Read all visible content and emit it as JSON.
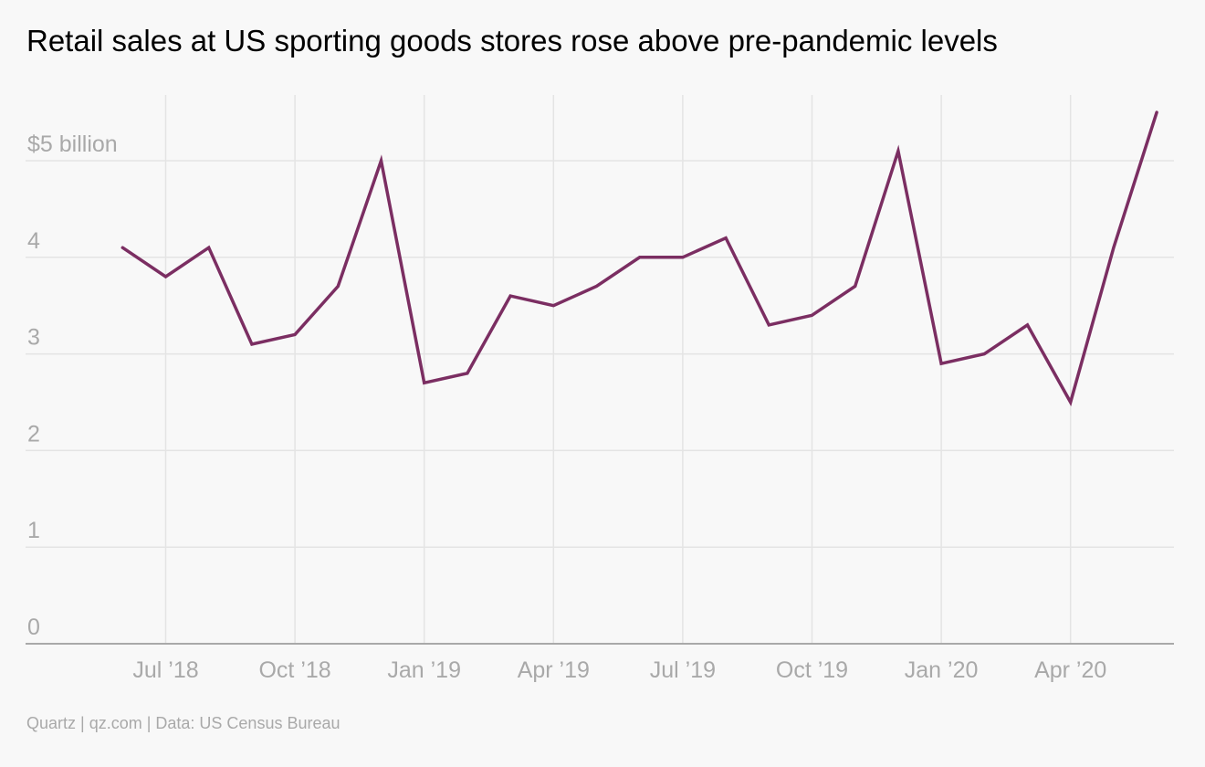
{
  "chart_data": {
    "type": "line",
    "title": "Retail sales at US sporting goods stores rose above pre-pandemic levels",
    "source": "Quartz | qz.com | Data: US Census Bureau",
    "ylim": [
      0,
      5.5
    ],
    "y_ticks": [
      {
        "value": 0,
        "label": "0"
      },
      {
        "value": 1,
        "label": "1"
      },
      {
        "value": 2,
        "label": "2"
      },
      {
        "value": 3,
        "label": "3"
      },
      {
        "value": 4,
        "label": "4"
      },
      {
        "value": 5,
        "label": "$5 billion"
      }
    ],
    "x_ticks": [
      {
        "date": "2018-07",
        "label": "Jul ’18"
      },
      {
        "date": "2018-10",
        "label": "Oct ’18"
      },
      {
        "date": "2019-01",
        "label": "Jan ’19"
      },
      {
        "date": "2019-04",
        "label": "Apr ’19"
      },
      {
        "date": "2019-07",
        "label": "Jul ’19"
      },
      {
        "date": "2019-10",
        "label": "Oct ’19"
      },
      {
        "date": "2020-01",
        "label": "Jan ’20"
      },
      {
        "date": "2020-04",
        "label": "Apr ’20"
      }
    ],
    "grid": true,
    "line_color": "#7b2e62",
    "series": [
      {
        "x": [
          "2018-06",
          "2018-07",
          "2018-08",
          "2018-09",
          "2018-10",
          "2018-11",
          "2018-12",
          "2019-01",
          "2019-02",
          "2019-03",
          "2019-04",
          "2019-05",
          "2019-06",
          "2019-07",
          "2019-08",
          "2019-09",
          "2019-10",
          "2019-11",
          "2019-12",
          "2020-01",
          "2020-02",
          "2020-03",
          "2020-04",
          "2020-05",
          "2020-06"
        ],
        "values": [
          4.1,
          3.8,
          4.1,
          3.1,
          3.2,
          3.7,
          5.0,
          2.7,
          2.8,
          3.6,
          3.5,
          3.7,
          4.0,
          4.0,
          4.2,
          3.3,
          3.4,
          3.7,
          5.1,
          2.9,
          3.0,
          3.3,
          2.5,
          4.1,
          5.5
        ]
      }
    ]
  }
}
